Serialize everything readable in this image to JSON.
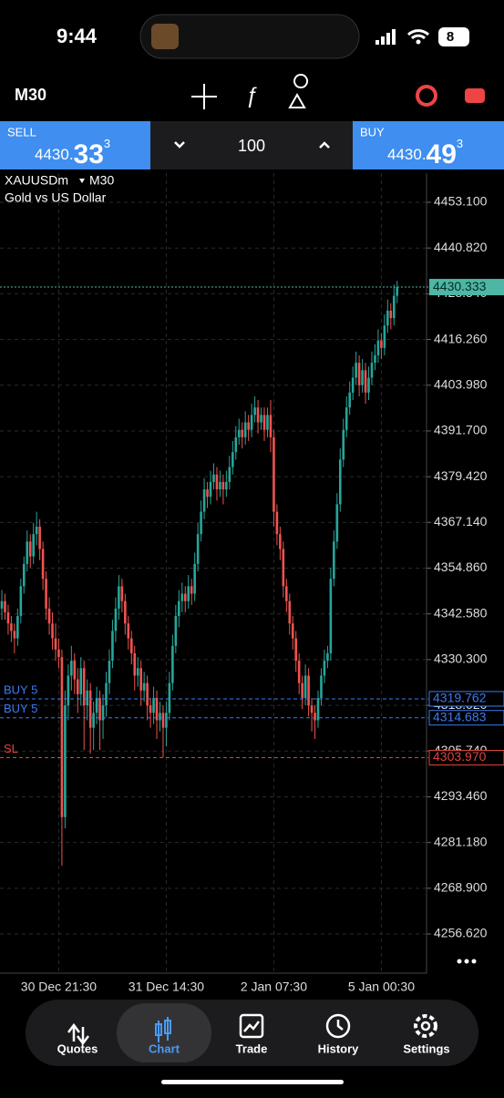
{
  "status_bar": {
    "time": "9:44",
    "battery": "8"
  },
  "toolbar": {
    "timeframe": "M30"
  },
  "trade_panel": {
    "sell": {
      "label": "SELL",
      "price_main": "4430.",
      "price_big": "33",
      "price_sup": "3"
    },
    "volume": "100",
    "buy": {
      "label": "BUY",
      "price_main": "4430.",
      "price_big": "49",
      "price_sup": "3"
    }
  },
  "chart_data": {
    "type": "candlestick",
    "symbol": "XAUUSDm",
    "timeframe": "M30",
    "description": "Gold vs US Dollar",
    "categories": [
      null,
      null,
      null,
      null,
      null,
      null,
      null,
      null,
      null,
      null,
      null,
      null,
      null,
      null,
      null,
      null,
      null,
      null,
      "30 Dec 21:30",
      null,
      null,
      null,
      null,
      null,
      null,
      null,
      null,
      null,
      null,
      null,
      null,
      null,
      null,
      null,
      null,
      null,
      null,
      null,
      null,
      null,
      null,
      null,
      null,
      null,
      null,
      null,
      null,
      null,
      null,
      null,
      null,
      null,
      "31 Dec 14:30",
      null,
      null,
      null,
      null,
      null,
      null,
      null,
      null,
      null,
      null,
      null,
      null,
      null,
      null,
      null,
      null,
      null,
      null,
      null,
      null,
      null,
      null,
      null,
      null,
      null,
      null,
      null,
      null,
      null,
      null,
      null,
      null,
      null,
      "2 Jan 07:30",
      null,
      null,
      null,
      null,
      null,
      null,
      null,
      null,
      null,
      null,
      null,
      null,
      null,
      null,
      null,
      null,
      null,
      null,
      null,
      null,
      null,
      null,
      null,
      null,
      null,
      null,
      null,
      null,
      null,
      null,
      null,
      null,
      null,
      "5 Jan 00:30",
      null,
      null,
      null,
      null,
      null
    ],
    "candles": [
      [
        4344,
        4349,
        4341,
        4346
      ],
      [
        4346,
        4348,
        4341,
        4343
      ],
      [
        4343,
        4345,
        4337,
        4340
      ],
      [
        4340,
        4342,
        4335,
        4338
      ],
      [
        4338,
        4340,
        4332,
        4336
      ],
      [
        4336,
        4344,
        4334,
        4342
      ],
      [
        4342,
        4352,
        4340,
        4350
      ],
      [
        4350,
        4358,
        4348,
        4356
      ],
      [
        4356,
        4365,
        4354,
        4362
      ],
      [
        4362,
        4364,
        4355,
        4358
      ],
      [
        4358,
        4367,
        4356,
        4364
      ],
      [
        4364,
        4370,
        4361,
        4366
      ],
      [
        4366,
        4368,
        4357,
        4360
      ],
      [
        4360,
        4362,
        4349,
        4352
      ],
      [
        4352,
        4354,
        4341,
        4344
      ],
      [
        4344,
        4347,
        4337,
        4340
      ],
      [
        4340,
        4343,
        4333,
        4336
      ],
      [
        4336,
        4340,
        4330,
        4333
      ],
      [
        4333,
        4336,
        4328,
        4331
      ],
      [
        4331,
        4333,
        4275,
        4288
      ],
      [
        4288,
        4322,
        4285,
        4318
      ],
      [
        4318,
        4329,
        4314,
        4326
      ],
      [
        4326,
        4334,
        4322,
        4330
      ],
      [
        4330,
        4332,
        4321,
        4325
      ],
      [
        4325,
        4328,
        4316,
        4321
      ],
      [
        4321,
        4331,
        4318,
        4328
      ],
      [
        4328,
        4330,
        4306,
        4318
      ],
      [
        4318,
        4325,
        4314,
        4322
      ],
      [
        4322,
        4324,
        4305,
        4312
      ],
      [
        4312,
        4319,
        4306,
        4316
      ],
      [
        4316,
        4323,
        4313,
        4320
      ],
      [
        4320,
        4322,
        4306,
        4314
      ],
      [
        4314,
        4321,
        4309,
        4318
      ],
      [
        4318,
        4327,
        4315,
        4324
      ],
      [
        4324,
        4333,
        4321,
        4330
      ],
      [
        4330,
        4341,
        4328,
        4338
      ],
      [
        4338,
        4347,
        4335,
        4344
      ],
      [
        4344,
        4353,
        4341,
        4350
      ],
      [
        4350,
        4352,
        4343,
        4346
      ],
      [
        4346,
        4348,
        4337,
        4340
      ],
      [
        4340,
        4342,
        4333,
        4336
      ],
      [
        4336,
        4338,
        4329,
        4332
      ],
      [
        4332,
        4334,
        4322,
        4326
      ],
      [
        4326,
        4331,
        4323,
        4328
      ],
      [
        4328,
        4330,
        4318,
        4322
      ],
      [
        4322,
        4327,
        4319,
        4324
      ],
      [
        4324,
        4326,
        4314,
        4318
      ],
      [
        4318,
        4320,
        4312,
        4316
      ],
      [
        4316,
        4323,
        4313,
        4320
      ],
      [
        4320,
        4322,
        4309,
        4314
      ],
      [
        4314,
        4319,
        4311,
        4316
      ],
      [
        4316,
        4318,
        4304,
        4312
      ],
      [
        4312,
        4319,
        4307,
        4316
      ],
      [
        4316,
        4327,
        4314,
        4324
      ],
      [
        4324,
        4337,
        4322,
        4334
      ],
      [
        4334,
        4345,
        4332,
        4342
      ],
      [
        4342,
        4349,
        4339,
        4346
      ],
      [
        4346,
        4351,
        4343,
        4348
      ],
      [
        4348,
        4350,
        4343,
        4346
      ],
      [
        4346,
        4353,
        4344,
        4350
      ],
      [
        4350,
        4352,
        4345,
        4348
      ],
      [
        4348,
        4359,
        4346,
        4356
      ],
      [
        4356,
        4367,
        4354,
        4364
      ],
      [
        4364,
        4373,
        4362,
        4370
      ],
      [
        4370,
        4379,
        4368,
        4376
      ],
      [
        4376,
        4378,
        4371,
        4374
      ],
      [
        4374,
        4381,
        4372,
        4378
      ],
      [
        4378,
        4383,
        4376,
        4380
      ],
      [
        4380,
        4382,
        4373,
        4376
      ],
      [
        4376,
        4381,
        4374,
        4378
      ],
      [
        4378,
        4380,
        4372,
        4376
      ],
      [
        4376,
        4381,
        4374,
        4378
      ],
      [
        4378,
        4385,
        4376,
        4382
      ],
      [
        4382,
        4389,
        4380,
        4386
      ],
      [
        4386,
        4393,
        4384,
        4390
      ],
      [
        4390,
        4395,
        4388,
        4392
      ],
      [
        4392,
        4394,
        4387,
        4390
      ],
      [
        4390,
        4397,
        4388,
        4394
      ],
      [
        4394,
        4396,
        4389,
        4392
      ],
      [
        4392,
        4399,
        4390,
        4396
      ],
      [
        4396,
        4401,
        4394,
        4398
      ],
      [
        4398,
        4400,
        4391,
        4394
      ],
      [
        4394,
        4398,
        4392,
        4396
      ],
      [
        4396,
        4398,
        4389,
        4392
      ],
      [
        4392,
        4398,
        4390,
        4396
      ],
      [
        4396,
        4400,
        4386,
        4390
      ],
      [
        4390,
        4392,
        4366,
        4370
      ],
      [
        4370,
        4372,
        4361,
        4364
      ],
      [
        4364,
        4366,
        4357,
        4360
      ],
      [
        4360,
        4362,
        4347,
        4350
      ],
      [
        4350,
        4352,
        4343,
        4346
      ],
      [
        4346,
        4348,
        4337,
        4340
      ],
      [
        4340,
        4342,
        4333,
        4336
      ],
      [
        4336,
        4338,
        4327,
        4330
      ],
      [
        4330,
        4332,
        4321,
        4324
      ],
      [
        4324,
        4326,
        4317,
        4320
      ],
      [
        4320,
        4329,
        4318,
        4326
      ],
      [
        4326,
        4328,
        4315,
        4318
      ],
      [
        4318,
        4320,
        4311,
        4316
      ],
      [
        4316,
        4318,
        4309,
        4314
      ],
      [
        4314,
        4322,
        4312,
        4320
      ],
      [
        4320,
        4328,
        4318,
        4326
      ],
      [
        4326,
        4333,
        4324,
        4330
      ],
      [
        4330,
        4334,
        4328,
        4332
      ],
      [
        4332,
        4355,
        4330,
        4352
      ],
      [
        4352,
        4365,
        4350,
        4362
      ],
      [
        4362,
        4375,
        4360,
        4372
      ],
      [
        4372,
        4387,
        4370,
        4384
      ],
      [
        4384,
        4395,
        4382,
        4392
      ],
      [
        4392,
        4401,
        4390,
        4398
      ],
      [
        4398,
        4405,
        4396,
        4402
      ],
      [
        4402,
        4409,
        4400,
        4406
      ],
      [
        4406,
        4413,
        4404,
        4410
      ],
      [
        4410,
        4412,
        4401,
        4404
      ],
      [
        4404,
        4411,
        4402,
        4408
      ],
      [
        4408,
        4410,
        4399,
        4402
      ],
      [
        4402,
        4409,
        4400,
        4406
      ],
      [
        4406,
        4413,
        4404,
        4410
      ],
      [
        4410,
        4415,
        4408,
        4412
      ],
      [
        4412,
        4419,
        4410,
        4416
      ],
      [
        4416,
        4418,
        4411,
        4414
      ],
      [
        4414,
        4423,
        4412,
        4420
      ],
      [
        4420,
        4427,
        4418,
        4424
      ],
      [
        4424,
        4426,
        4419,
        4422
      ],
      [
        4422,
        4431,
        4420,
        4428
      ],
      [
        4428,
        4432,
        4426,
        4430.333
      ]
    ],
    "up_color": "#26a69a",
    "down_color": "#ef5350",
    "ylim": [
      4246.1,
      4460.93
    ],
    "yticks": [
      {
        "value": 4453.1,
        "label": "4453.100"
      },
      {
        "value": 4440.82,
        "label": "4440.820"
      },
      {
        "value": 4428.54,
        "label": "4428.540"
      },
      {
        "value": 4416.26,
        "label": "4416.260"
      },
      {
        "value": 4403.98,
        "label": "4403.980"
      },
      {
        "value": 4391.7,
        "label": "4391.700"
      },
      {
        "value": 4379.42,
        "label": "4379.420"
      },
      {
        "value": 4367.14,
        "label": "4367.140"
      },
      {
        "value": 4354.86,
        "label": "4354.860"
      },
      {
        "value": 4342.58,
        "label": "4342.580"
      },
      {
        "value": 4330.3,
        "label": "4330.300"
      },
      {
        "value": 4318.02,
        "label": "4318.020"
      },
      {
        "value": 4305.74,
        "label": "4305.740"
      },
      {
        "value": 4293.46,
        "label": "4293.460"
      },
      {
        "value": 4281.18,
        "label": "4281.180"
      },
      {
        "value": 4268.9,
        "label": "4268.900"
      },
      {
        "value": 4256.62,
        "label": "4256.620"
      }
    ],
    "grid": true,
    "current_price": {
      "value": 4430.333,
      "color": "#4db6a4"
    },
    "order_lines": [
      {
        "label": "BUY 5",
        "price": 4319.762,
        "color": "#3d7bf0"
      },
      {
        "label": "BUY 5",
        "price": 4314.683,
        "color": "#3d7bf0"
      },
      {
        "label": "SL",
        "price": {
          "value": 4303.97,
          "label": "4303.970"
        },
        "color": "#e0443e"
      }
    ]
  },
  "nav": {
    "items": [
      "Quotes",
      "Chart",
      "Trade",
      "History",
      "Settings"
    ],
    "active": 1
  }
}
